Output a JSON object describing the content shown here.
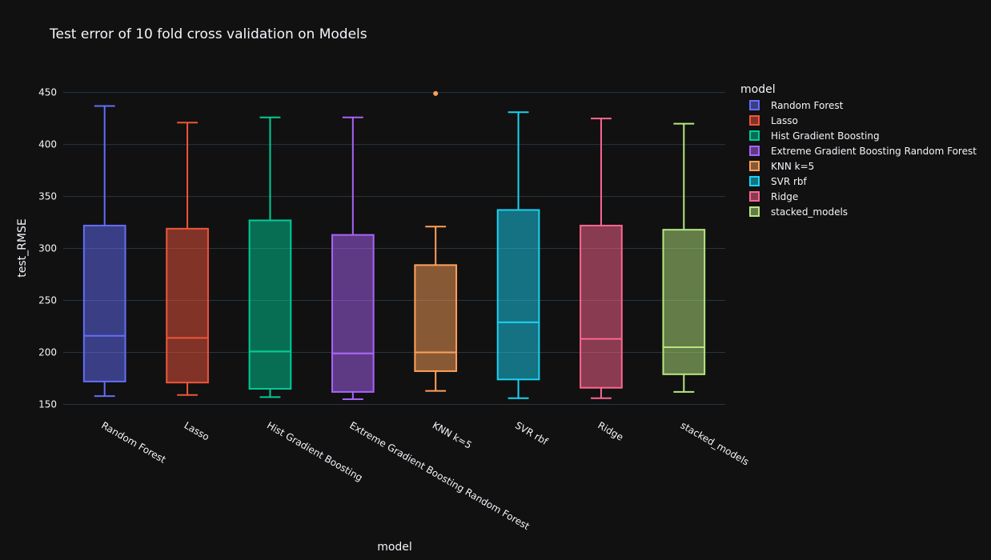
{
  "chart_data": {
    "type": "box",
    "title": "Test error of 10 fold cross validation on Models",
    "xlabel": "model",
    "ylabel": "test_RMSE",
    "ylim": [
      145,
      462
    ],
    "yticks": [
      150,
      200,
      250,
      300,
      350,
      400,
      450
    ],
    "grid": true,
    "legend_title": "model",
    "legend_position": "right",
    "series": [
      {
        "name": "Random Forest",
        "color": "#636efa",
        "min": 158,
        "q1": 172,
        "median": 216,
        "q3": 322,
        "max": 437,
        "outliers": []
      },
      {
        "name": "Lasso",
        "color": "#ef553b",
        "min": 159,
        "q1": 171,
        "median": 214,
        "q3": 319,
        "max": 421,
        "outliers": []
      },
      {
        "name": "Hist Gradient Boosting",
        "color": "#00cc96",
        "min": 157,
        "q1": 165,
        "median": 201,
        "q3": 327,
        "max": 426,
        "outliers": []
      },
      {
        "name": "Extreme Gradient Boosting Random Forest",
        "color": "#ab63fa",
        "min": 155,
        "q1": 162,
        "median": 199,
        "q3": 313,
        "max": 426,
        "outliers": []
      },
      {
        "name": "KNN k=5",
        "color": "#ffa15a",
        "min": 163,
        "q1": 182,
        "median": 200,
        "q3": 284,
        "max": 321,
        "outliers": [
          449
        ]
      },
      {
        "name": "SVR rbf",
        "color": "#19d3f3",
        "min": 156,
        "q1": 174,
        "median": 229,
        "q3": 337,
        "max": 431,
        "outliers": []
      },
      {
        "name": "Ridge",
        "color": "#ff6692",
        "min": 156,
        "q1": 166,
        "median": 213,
        "q3": 322,
        "max": 425,
        "outliers": []
      },
      {
        "name": "stacked_models",
        "color": "#b6e880",
        "min": 162,
        "q1": 179,
        "median": 205,
        "q3": 318,
        "max": 420,
        "outliers": []
      }
    ]
  }
}
